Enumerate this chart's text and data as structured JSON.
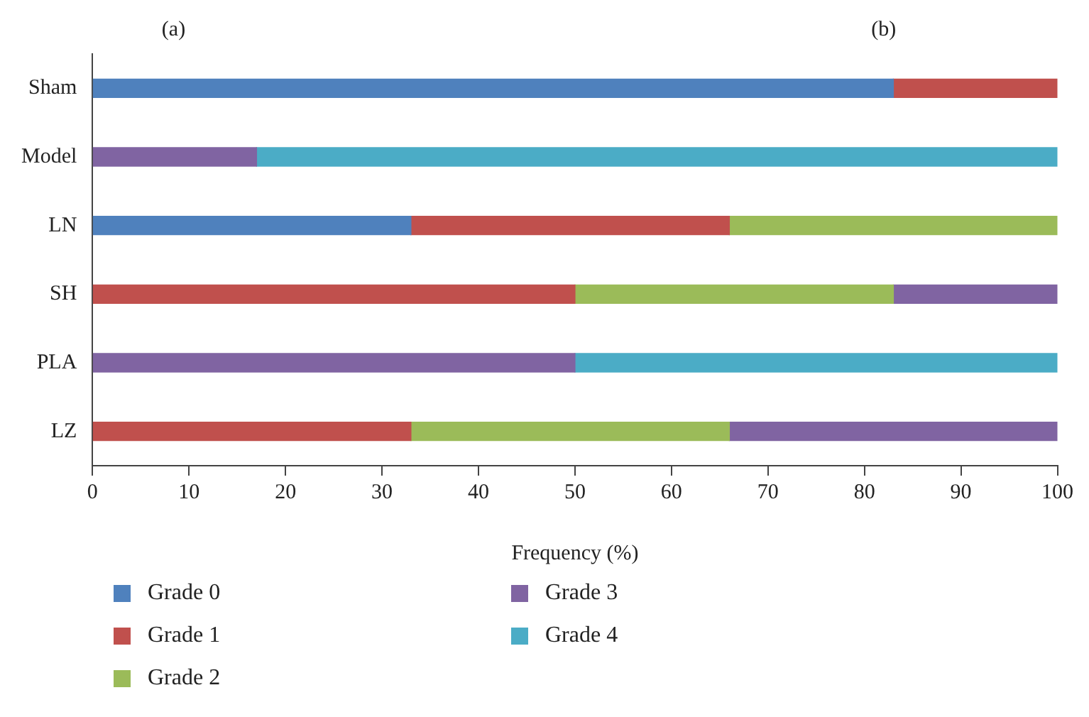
{
  "chart_data": {
    "type": "bar",
    "orientation": "horizontal",
    "stacked": true,
    "categories": [
      "Sham",
      "Model",
      "LN",
      "SH",
      "PLA",
      "LZ"
    ],
    "series": [
      {
        "name": "Grade 0",
        "color": "#4f81bd",
        "values": [
          83,
          null,
          33,
          null,
          null,
          null
        ]
      },
      {
        "name": "Grade 1",
        "color": "#c0504d",
        "values": [
          17,
          null,
          33,
          50,
          null,
          33
        ]
      },
      {
        "name": "Grade 2",
        "color": "#9bbb59",
        "values": [
          null,
          null,
          34,
          33,
          null,
          33
        ]
      },
      {
        "name": "Grade 3",
        "color": "#8064a2",
        "values": [
          null,
          17,
          null,
          17,
          50,
          34
        ]
      },
      {
        "name": "Grade 4",
        "color": "#4bacc6",
        "values": [
          null,
          83,
          null,
          null,
          50,
          null
        ]
      }
    ],
    "xlim": [
      0,
      100
    ],
    "xticks": [
      0,
      10,
      20,
      30,
      40,
      50,
      60,
      70,
      80,
      90,
      100
    ],
    "xlabel": "Frequency (%)",
    "grid": false,
    "legend": "bottom",
    "annotations": [
      "(a)",
      "(b)"
    ]
  }
}
